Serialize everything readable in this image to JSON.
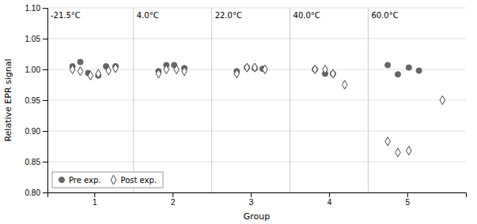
{
  "chart_data": {
    "type": "scatter",
    "xlabel": "Group",
    "ylabel": "Relative EPR signal",
    "xlim": [
      0.4,
      5.75
    ],
    "xticks": [
      1,
      2,
      3,
      4,
      5
    ],
    "ylim": [
      0.8,
      1.1
    ],
    "yticks": [
      {
        "value": 0.8,
        "label": "0.80"
      },
      0.85,
      {
        "value": 0.9,
        "label": "0.90"
      },
      0.95,
      {
        "value": 1.0,
        "label": "1.00"
      },
      1.05,
      {
        "value": 1.1,
        "label": "1.10"
      }
    ],
    "grid": true,
    "legend": "lower left",
    "separators": [
      1.5,
      2.5,
      3.5,
      4.5
    ],
    "annotations": [
      "-21.5°C",
      "4.0°C",
      "22.0°C",
      "40.0°C",
      "60.0°C"
    ],
    "series": [
      {
        "name": "Pre exp.",
        "color": "#666666",
        "marker": "circle",
        "x": [
          0.72,
          0.82,
          0.92,
          1.05,
          1.15,
          1.27,
          1.82,
          1.92,
          2.02,
          2.15,
          2.82,
          2.95,
          3.05,
          3.15,
          3.82,
          3.95,
          4.05,
          4.75,
          4.88,
          5.02,
          5.15
        ],
        "values": [
          1.005,
          1.012,
          0.994,
          0.99,
          1.005,
          1.005,
          0.997,
          1.007,
          1.007,
          1.002,
          0.997,
          1.003,
          1.002,
          1.001,
          1.0,
          0.993,
          0.993,
          1.007,
          0.992,
          1.003,
          0.998
        ]
      },
      {
        "name": "Post exp.",
        "color": "#444444",
        "marker": "diamond-open",
        "x": [
          0.72,
          0.82,
          0.95,
          1.05,
          1.18,
          1.27,
          1.82,
          1.92,
          2.05,
          2.15,
          2.82,
          2.95,
          3.05,
          3.18,
          3.82,
          3.95,
          4.05,
          4.2,
          4.75,
          4.88,
          5.02,
          5.45
        ],
        "values": [
          1.0,
          0.997,
          0.99,
          0.993,
          0.998,
          1.002,
          0.993,
          1.0,
          1.0,
          0.997,
          0.993,
          1.003,
          1.003,
          1.0,
          1.0,
          1.0,
          0.993,
          0.975,
          0.883,
          0.865,
          0.868,
          0.95
        ]
      }
    ]
  }
}
